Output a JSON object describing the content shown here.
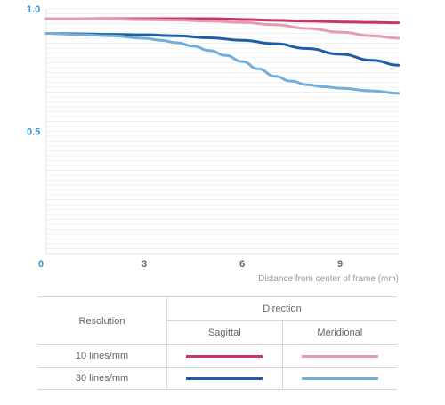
{
  "chart_data": {
    "type": "line",
    "xlabel": "Distance from center of frame (mm)",
    "ylabel": "",
    "xlim": [
      0,
      10.8
    ],
    "ylim": [
      0,
      1.0
    ],
    "x_ticks": [
      "0",
      "3",
      "6",
      "9"
    ],
    "y_ticks": [
      "1.0",
      "0.5"
    ],
    "grid": "horizontal minor lines",
    "series": [
      {
        "name": "10 lines/mm Sagittal",
        "color": "#c9375f",
        "x": [
          0,
          1,
          2,
          3,
          4,
          5,
          6,
          7,
          8,
          9,
          10,
          10.8
        ],
        "y": [
          0.96,
          0.96,
          0.96,
          0.96,
          0.96,
          0.96,
          0.957,
          0.953,
          0.95,
          0.947,
          0.945,
          0.943
        ]
      },
      {
        "name": "10 lines/mm Meridional",
        "color": "#e69bb4",
        "x": [
          0,
          1,
          2,
          3,
          4,
          5,
          6,
          7,
          8,
          9,
          10,
          10.8
        ],
        "y": [
          0.96,
          0.96,
          0.958,
          0.956,
          0.954,
          0.95,
          0.945,
          0.935,
          0.92,
          0.905,
          0.89,
          0.88
        ]
      },
      {
        "name": "30 lines/mm Sagittal",
        "color": "#1d5fa6",
        "x": [
          0,
          1,
          2,
          3,
          4,
          5,
          6,
          7,
          8,
          9,
          10,
          10.8
        ],
        "y": [
          0.9,
          0.898,
          0.896,
          0.894,
          0.89,
          0.882,
          0.872,
          0.858,
          0.838,
          0.815,
          0.79,
          0.77
        ]
      },
      {
        "name": "30 lines/mm Meridional",
        "color": "#74aed8",
        "x": [
          0,
          1,
          2,
          3,
          3.5,
          4,
          4.5,
          5,
          5.5,
          6,
          6.5,
          7,
          7.5,
          8,
          8.5,
          9,
          10,
          10.8
        ],
        "y": [
          0.9,
          0.895,
          0.89,
          0.88,
          0.872,
          0.862,
          0.848,
          0.83,
          0.81,
          0.785,
          0.755,
          0.725,
          0.705,
          0.69,
          0.682,
          0.676,
          0.665,
          0.655
        ]
      }
    ]
  },
  "legend": {
    "resolution_header": "Resolution",
    "direction_header": "Direction",
    "sagittal_header": "Sagittal",
    "meridional_header": "Meridional",
    "rows": [
      {
        "label": "10 lines/mm",
        "sagittal_color": "#c9375f",
        "meridional_color": "#e69bb4"
      },
      {
        "label": "30 lines/mm",
        "sagittal_color": "#1d5fa6",
        "meridional_color": "#74aed8"
      }
    ]
  }
}
